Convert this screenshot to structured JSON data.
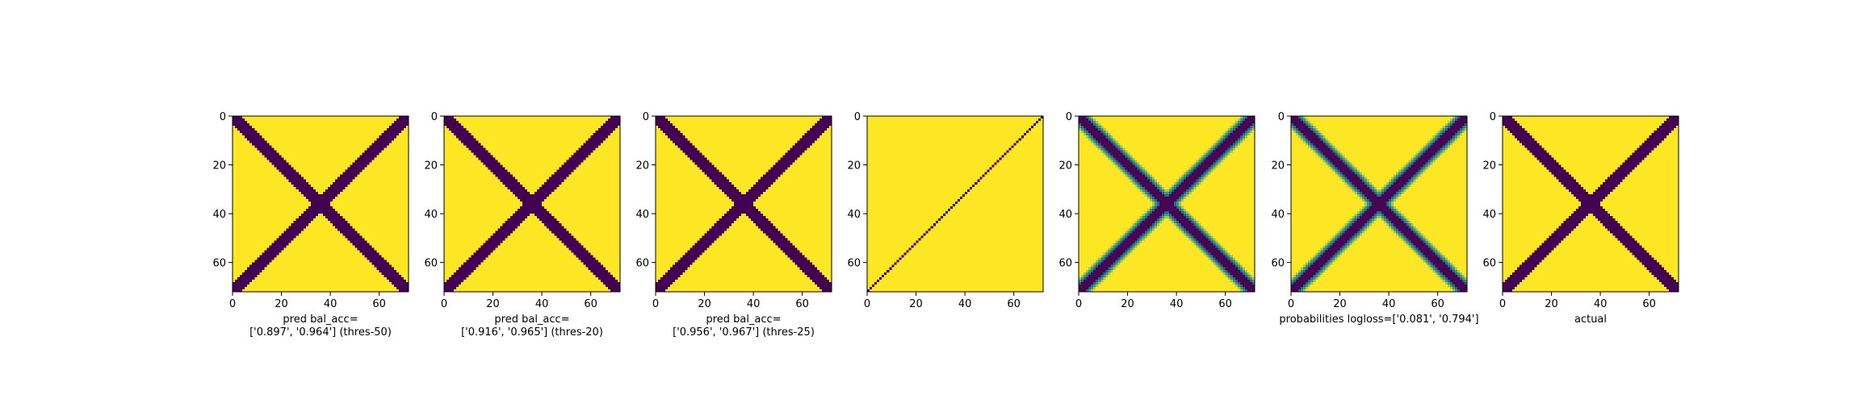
{
  "chart_data": [
    {
      "type": "heatmap",
      "grid": 72,
      "pattern": "binary-x",
      "xlabel": "pred bal_acc=\n['0.897', '0.964'] (thres-50)",
      "xticks": [
        0,
        20,
        40,
        60
      ],
      "yticks": [
        0,
        20,
        40,
        60
      ],
      "xlim": [
        0,
        72
      ],
      "ylim": [
        72,
        0
      ]
    },
    {
      "type": "heatmap",
      "grid": 72,
      "pattern": "binary-x",
      "xlabel": "pred bal_acc=\n['0.916', '0.965'] (thres-20)",
      "xticks": [
        0,
        20,
        40,
        60
      ],
      "yticks": [
        0,
        20,
        40,
        60
      ],
      "xlim": [
        0,
        72
      ],
      "ylim": [
        72,
        0
      ]
    },
    {
      "type": "heatmap",
      "grid": 72,
      "pattern": "binary-x",
      "xlabel": "pred bal_acc=\n['0.956', '0.967'] (thres-25)",
      "xticks": [
        0,
        20,
        40,
        60
      ],
      "yticks": [
        0,
        20,
        40,
        60
      ],
      "xlim": [
        0,
        72
      ],
      "ylim": [
        72,
        0
      ]
    },
    {
      "type": "heatmap",
      "grid": 72,
      "pattern": "anti-diagonal-line",
      "xlabel": "",
      "xticks": [
        0,
        20,
        40,
        60
      ],
      "yticks": [
        0,
        20,
        40,
        60
      ],
      "xlim": [
        0,
        72
      ],
      "ylim": [
        72,
        0
      ]
    },
    {
      "type": "heatmap",
      "grid": 72,
      "pattern": "probability-x",
      "xlabel": "",
      "xticks": [
        0,
        20,
        40,
        60
      ],
      "yticks": [
        0,
        20,
        40,
        60
      ],
      "xlim": [
        0,
        72
      ],
      "ylim": [
        72,
        0
      ]
    },
    {
      "type": "heatmap",
      "grid": 72,
      "pattern": "probability-x",
      "xlabel": "probabilities logloss=['0.081', '0.794']",
      "xticks": [
        0,
        20,
        40,
        60
      ],
      "yticks": [
        0,
        20,
        40,
        60
      ],
      "xlim": [
        0,
        72
      ],
      "ylim": [
        72,
        0
      ]
    },
    {
      "type": "heatmap",
      "grid": 72,
      "pattern": "binary-x",
      "xlabel": "actual",
      "xticks": [
        0,
        20,
        40,
        60
      ],
      "yticks": [
        0,
        20,
        40,
        60
      ],
      "xlim": [
        0,
        72
      ],
      "ylim": [
        72,
        0
      ]
    }
  ],
  "colors": {
    "low": "#440154",
    "mid": "#21918c",
    "high": "#fde725"
  }
}
